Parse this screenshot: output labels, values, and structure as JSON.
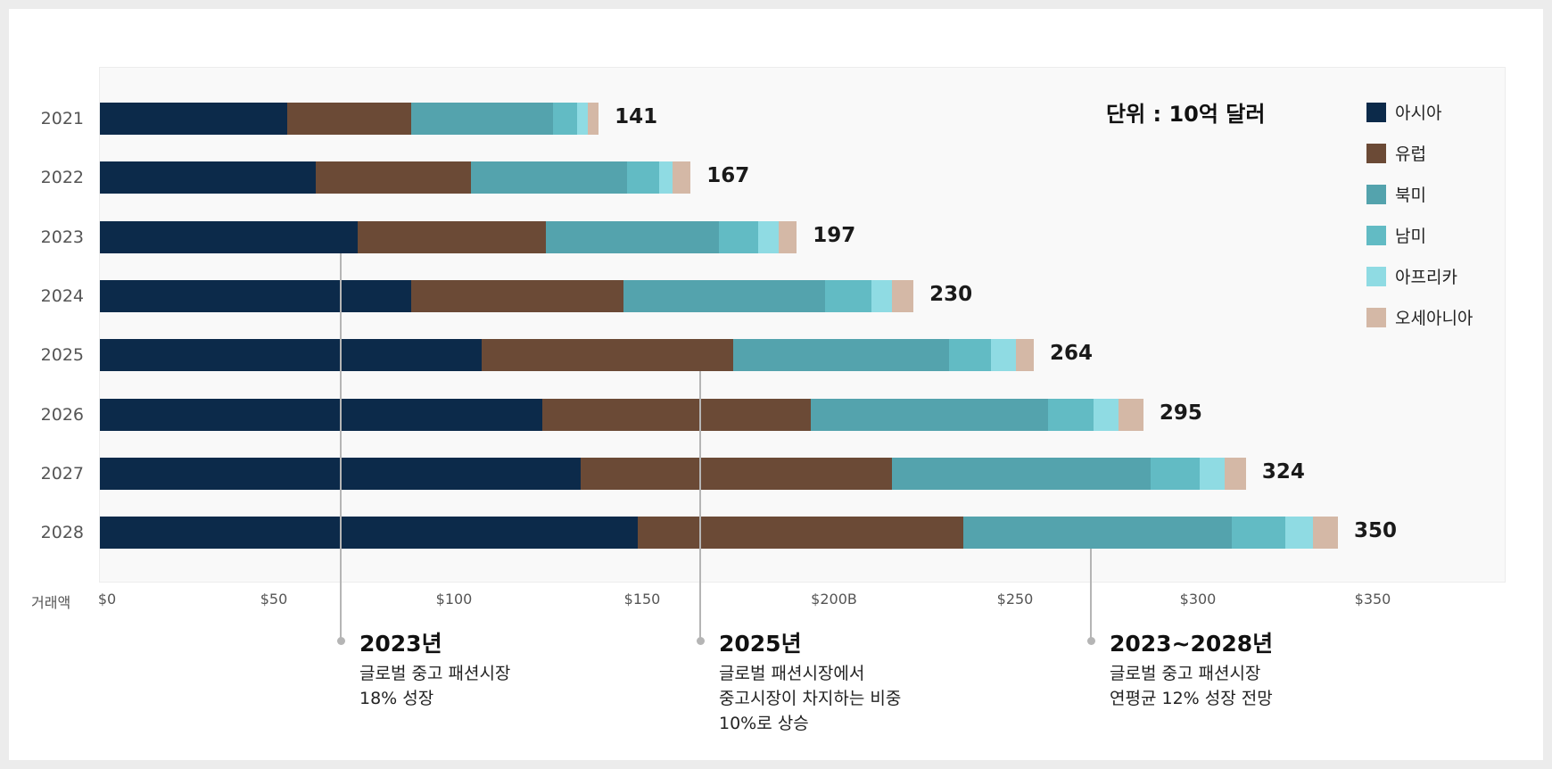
{
  "chart_data": {
    "type": "bar",
    "orientation": "horizontal",
    "stacked": true,
    "title": "",
    "unit_label": "단위 : 10억 달러",
    "xlabel": "거래액",
    "ylabel": "",
    "xlim": [
      0,
      350
    ],
    "x_tick_labels": [
      "$0",
      "$50",
      "$100",
      "$150",
      "$200B",
      "$250",
      "$300",
      "$350"
    ],
    "categories": [
      "2021",
      "2022",
      "2023",
      "2024",
      "2025",
      "2026",
      "2027",
      "2028"
    ],
    "totals": [
      141,
      167,
      197,
      230,
      264,
      295,
      324,
      350
    ],
    "series": [
      {
        "name": "아시아",
        "color": "#0c2a4a",
        "values": [
          53,
          61,
          73,
          88,
          108,
          125,
          136,
          152
        ]
      },
      {
        "name": "유럽",
        "color": "#6b4a36",
        "values": [
          35,
          44,
          53,
          60,
          71,
          76,
          88,
          92
        ]
      },
      {
        "name": "북미",
        "color": "#54a3ad",
        "values": [
          40,
          44,
          49,
          57,
          61,
          67,
          73,
          76
        ]
      },
      {
        "name": "남미",
        "color": "#62bbc4",
        "values": [
          7,
          9,
          11,
          13,
          12,
          13,
          14,
          15
        ]
      },
      {
        "name": "아프리카",
        "color": "#8fdbe3",
        "values": [
          3,
          4,
          6,
          6,
          7,
          7,
          7,
          8
        ]
      },
      {
        "name": "오세아니아",
        "color": "#d4b8a6",
        "values": [
          3,
          5,
          5,
          6,
          5,
          7,
          6,
          7
        ]
      }
    ],
    "legend_position": "top-right",
    "grid": false,
    "annotations": [
      {
        "category": "2023",
        "title": "2023년",
        "body": "글로벌 중고 패션시장\n18% 성장"
      },
      {
        "category": "2025",
        "title": "2025년",
        "body": "글로벌 패션시장에서\n중고시장이 차지하는 비중\n10%로 상승"
      },
      {
        "category": "2028",
        "title": "2023~2028년",
        "body": "글로벌 중고 패션시장\n연평균 12% 성장 전망"
      }
    ]
  }
}
